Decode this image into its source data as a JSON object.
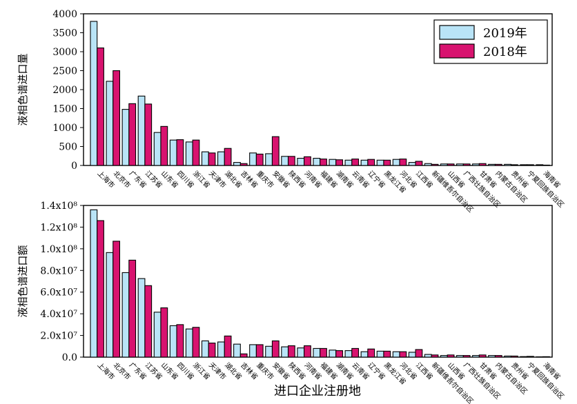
{
  "chart_data": [
    {
      "type": "bar",
      "ylabel": "液相色谱进口量",
      "xlabel": "",
      "ylim": [
        0,
        4000
      ],
      "yticks": [
        "0",
        "500",
        "1000",
        "1500",
        "2000",
        "2500",
        "3000",
        "3500",
        "4000"
      ],
      "legend": "top-right",
      "categories": [
        "上海市",
        "北京市",
        "广东省",
        "江苏省",
        "山东省",
        "四川省",
        "浙江省",
        "天津市",
        "湖北省",
        "吉林省",
        "重庆市",
        "安徽省",
        "陕西省",
        "河南省",
        "福建省",
        "湖南省",
        "云南省",
        "辽宁省",
        "黑龙江省",
        "河北省",
        "江西省",
        "新疆维吾尔自治区",
        "山西省",
        "广西壮族自治区",
        "甘肃省",
        "内蒙古自治区",
        "贵州省",
        "宁夏回族自治区",
        "海南省"
      ],
      "series": [
        {
          "name": "2019年",
          "color": "#b9e4f7",
          "values": [
            3800,
            2220,
            1480,
            1830,
            870,
            670,
            620,
            360,
            360,
            80,
            330,
            310,
            240,
            190,
            190,
            160,
            140,
            140,
            140,
            160,
            80,
            50,
            40,
            40,
            40,
            30,
            30,
            20,
            20
          ]
        },
        {
          "name": "2018年",
          "color": "#d8136f",
          "values": [
            3100,
            2500,
            1630,
            1620,
            1030,
            680,
            670,
            330,
            450,
            50,
            300,
            760,
            240,
            230,
            170,
            150,
            170,
            160,
            140,
            170,
            110,
            30,
            40,
            40,
            50,
            30,
            20,
            20,
            10
          ]
        }
      ]
    },
    {
      "type": "bar",
      "ylabel": "液相色谱进口额",
      "xlabel": "进口企业注册地",
      "ylim": [
        0,
        140000000
      ],
      "yticks": [
        "0.0",
        "2.0x10⁷",
        "4.0x10⁷",
        "6.0x10⁷",
        "8.0x10⁷",
        "1.0x10⁸",
        "1.2x10⁸",
        "1.4x10⁸"
      ],
      "categories": [
        "上海市",
        "北京市",
        "广东省",
        "江苏省",
        "山东省",
        "四川省",
        "浙江省",
        "天津市",
        "湖北省",
        "吉林省",
        "重庆市",
        "安徽省",
        "陕西省",
        "河南省",
        "福建省",
        "湖南省",
        "云南省",
        "辽宁省",
        "黑龙江省",
        "河北省",
        "江西省",
        "新疆维吾尔自治区",
        "山西省",
        "广西壮族自治区",
        "甘肃省",
        "内蒙古自治区",
        "贵州省",
        "宁夏回族自治区",
        "海南省"
      ],
      "series": [
        {
          "name": "2019年",
          "color": "#b9e4f7",
          "values": [
            136000000,
            96500000,
            78000000,
            72500000,
            41500000,
            29000000,
            26000000,
            15000000,
            14000000,
            12000000,
            11500000,
            10000000,
            9500000,
            8500000,
            8000000,
            6500000,
            6000000,
            5000000,
            5500000,
            5000000,
            4500000,
            2500000,
            1500000,
            1500000,
            1500000,
            1500000,
            1000000,
            500000,
            300000
          ]
        },
        {
          "name": "2018年",
          "color": "#d8136f",
          "values": [
            126000000,
            107000000,
            89500000,
            66000000,
            45500000,
            30000000,
            27500000,
            13000000,
            19500000,
            3000000,
            11500000,
            15000000,
            10500000,
            10500000,
            8000000,
            6000000,
            8000000,
            7500000,
            5500000,
            5000000,
            7000000,
            2000000,
            2000000,
            1500000,
            2000000,
            1500000,
            1000000,
            700000,
            400000
          ]
        }
      ]
    }
  ]
}
